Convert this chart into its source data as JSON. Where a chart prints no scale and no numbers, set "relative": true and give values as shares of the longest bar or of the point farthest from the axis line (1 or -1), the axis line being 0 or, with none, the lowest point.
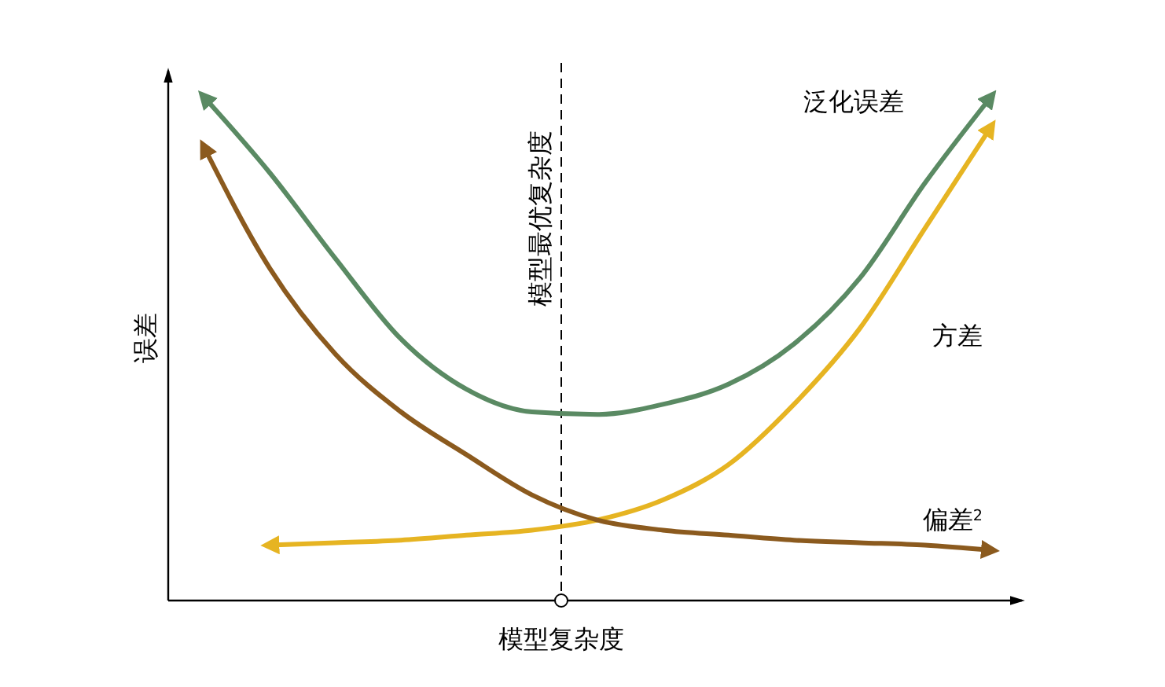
{
  "chart_data": {
    "type": "line",
    "relative": true,
    "xlabel": "模型复杂度",
    "ylabel": "误差",
    "categories": [
      null,
      null,
      null,
      null,
      null,
      null,
      null,
      null,
      null,
      null,
      null,
      null,
      null
    ],
    "series": [
      {
        "name": "泛化误差",
        "color": "#5a8a63",
        "values": [
          1.0,
          0.85,
          0.68,
          0.52,
          0.42,
          0.375,
          0.37,
          0.39,
          0.43,
          0.51,
          0.64,
          0.83,
          1.0
        ]
      },
      {
        "name": "方差",
        "color": "#e6b422",
        "values": [
          null,
          0.11,
          0.115,
          0.12,
          0.13,
          0.14,
          0.16,
          0.2,
          0.27,
          0.39,
          0.54,
          0.74,
          0.94
        ]
      },
      {
        "name": "偏差$^{2}$",
        "color": "#8b5a1e",
        "values": [
          0.9,
          0.66,
          0.49,
          0.375,
          0.29,
          0.21,
          0.16,
          0.14,
          0.13,
          0.12,
          0.115,
          0.11,
          0.1
        ]
      }
    ],
    "annotations": [
      "模型最优复杂度"
    ],
    "marker": "none",
    "line_style": "solid"
  }
}
